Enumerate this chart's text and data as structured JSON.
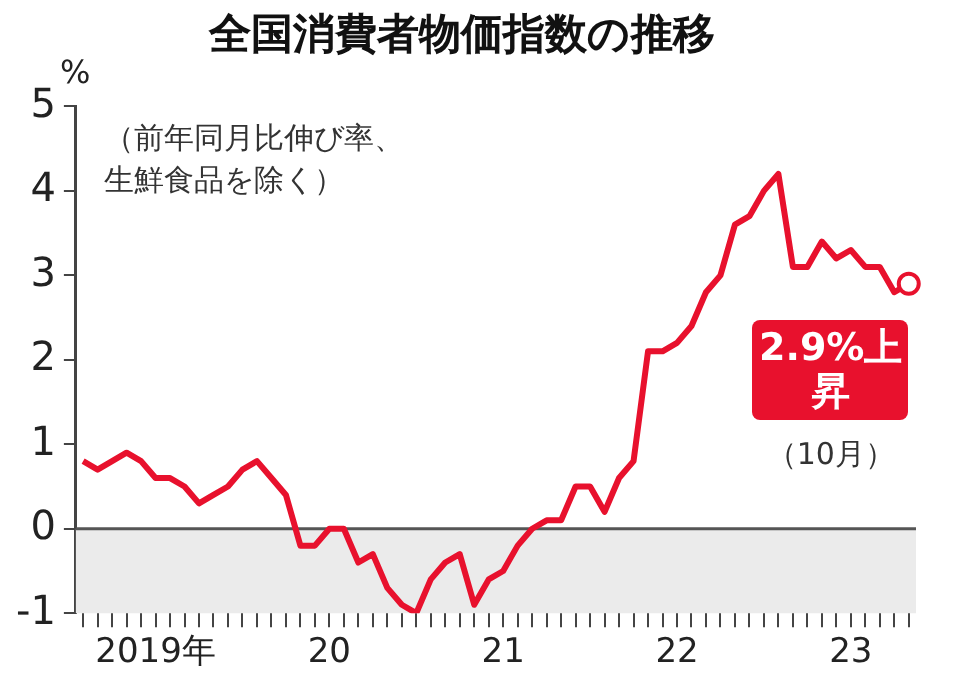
{
  "chart_data": {
    "type": "line",
    "title": "全国消費者物価指数の推移",
    "ylabel": "%",
    "categories": [
      null,
      null,
      null,
      null,
      null,
      "2019年",
      null,
      null,
      null,
      null,
      null,
      null,
      null,
      null,
      null,
      null,
      null,
      "20",
      null,
      null,
      null,
      null,
      null,
      null,
      null,
      null,
      null,
      null,
      null,
      "21",
      null,
      null,
      null,
      null,
      null,
      null,
      null,
      null,
      null,
      null,
      null,
      "22",
      null,
      null,
      null,
      null,
      null,
      null,
      null,
      null,
      null,
      null,
      null,
      "23",
      null,
      null,
      null,
      null
    ],
    "series": [
      {
        "color": "#e8112d",
        "values": [
          0.8,
          0.7,
          0.8,
          0.9,
          0.8,
          0.6,
          0.6,
          0.5,
          0.3,
          0.4,
          0.5,
          0.7,
          0.8,
          0.6,
          0.4,
          -0.2,
          -0.2,
          0.0,
          0.0,
          -0.4,
          -0.3,
          -0.7,
          -0.9,
          -1.0,
          -0.6,
          -0.4,
          -0.3,
          -0.9,
          -0.6,
          -0.5,
          -0.2,
          0.0,
          0.1,
          0.1,
          0.5,
          0.5,
          0.2,
          0.6,
          0.8,
          2.1,
          2.1,
          2.2,
          2.4,
          2.8,
          3.0,
          3.6,
          3.7,
          4.0,
          4.2,
          3.1,
          3.1,
          3.4,
          3.2,
          3.3,
          3.1,
          3.1,
          2.8,
          2.9
        ]
      }
    ],
    "ylim": [
      -1,
      5
    ],
    "yticks": [
      -1,
      0,
      1,
      2,
      3,
      4,
      5
    ],
    "grid": false,
    "bands": [
      {
        "axis": "y",
        "from": -1,
        "to": 0,
        "color": "#ebebeb"
      }
    ],
    "ref_lines": [
      {
        "axis": "y",
        "value": 0,
        "color": "#555555"
      }
    ],
    "annotations": [
      "（前年同月比伸び率、生鮮食品を除く）",
      "2.9%上昇",
      "（10月）"
    ]
  }
}
